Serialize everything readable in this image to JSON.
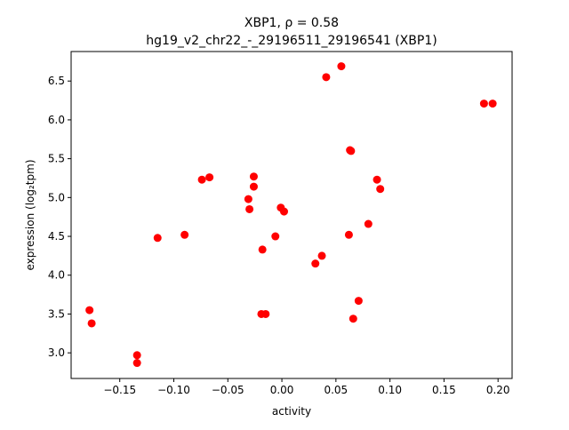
{
  "chart_data": {
    "type": "scatter",
    "title_line1": "XBP1, ρ = 0.58",
    "title_line2": "hg19_v2_chr22_-_29196511_29196541 (XBP1)",
    "xlabel": "activity",
    "ylabel": "expression (log₂tpm)",
    "xlim": [
      -0.195,
      0.213
    ],
    "ylim": [
      2.67,
      6.88
    ],
    "xticks": [
      -0.15,
      -0.1,
      -0.05,
      0.0,
      0.05,
      0.1,
      0.15,
      0.2
    ],
    "xtick_labels": [
      "−0.15",
      "−0.10",
      "−0.05",
      "0.00",
      "0.05",
      "0.10",
      "0.15",
      "0.20"
    ],
    "yticks": [
      3.0,
      3.5,
      4.0,
      4.5,
      5.0,
      5.5,
      6.0,
      6.5
    ],
    "ytick_labels": [
      "3.0",
      "3.5",
      "4.0",
      "4.5",
      "5.0",
      "5.5",
      "6.0",
      "6.5"
    ],
    "grid": false,
    "marker_color": "#ff0000",
    "points": [
      {
        "x": -0.178,
        "y": 3.55
      },
      {
        "x": -0.176,
        "y": 3.38
      },
      {
        "x": -0.134,
        "y": 2.97
      },
      {
        "x": -0.134,
        "y": 2.87
      },
      {
        "x": -0.115,
        "y": 4.48
      },
      {
        "x": -0.09,
        "y": 4.52
      },
      {
        "x": -0.074,
        "y": 5.23
      },
      {
        "x": -0.067,
        "y": 5.26
      },
      {
        "x": -0.031,
        "y": 4.98
      },
      {
        "x": -0.03,
        "y": 4.85
      },
      {
        "x": -0.026,
        "y": 5.27
      },
      {
        "x": -0.026,
        "y": 5.14
      },
      {
        "x": -0.019,
        "y": 3.5
      },
      {
        "x": -0.018,
        "y": 4.33
      },
      {
        "x": -0.015,
        "y": 3.5
      },
      {
        "x": -0.006,
        "y": 4.5
      },
      {
        "x": -0.001,
        "y": 4.87
      },
      {
        "x": 0.002,
        "y": 4.82
      },
      {
        "x": 0.031,
        "y": 4.15
      },
      {
        "x": 0.037,
        "y": 4.25
      },
      {
        "x": 0.041,
        "y": 6.55
      },
      {
        "x": 0.055,
        "y": 6.69
      },
      {
        "x": 0.062,
        "y": 4.52
      },
      {
        "x": 0.063,
        "y": 5.61
      },
      {
        "x": 0.064,
        "y": 5.6
      },
      {
        "x": 0.066,
        "y": 3.44
      },
      {
        "x": 0.071,
        "y": 3.67
      },
      {
        "x": 0.08,
        "y": 4.66
      },
      {
        "x": 0.088,
        "y": 5.23
      },
      {
        "x": 0.091,
        "y": 5.11
      },
      {
        "x": 0.187,
        "y": 6.21
      },
      {
        "x": 0.195,
        "y": 6.21
      }
    ]
  }
}
